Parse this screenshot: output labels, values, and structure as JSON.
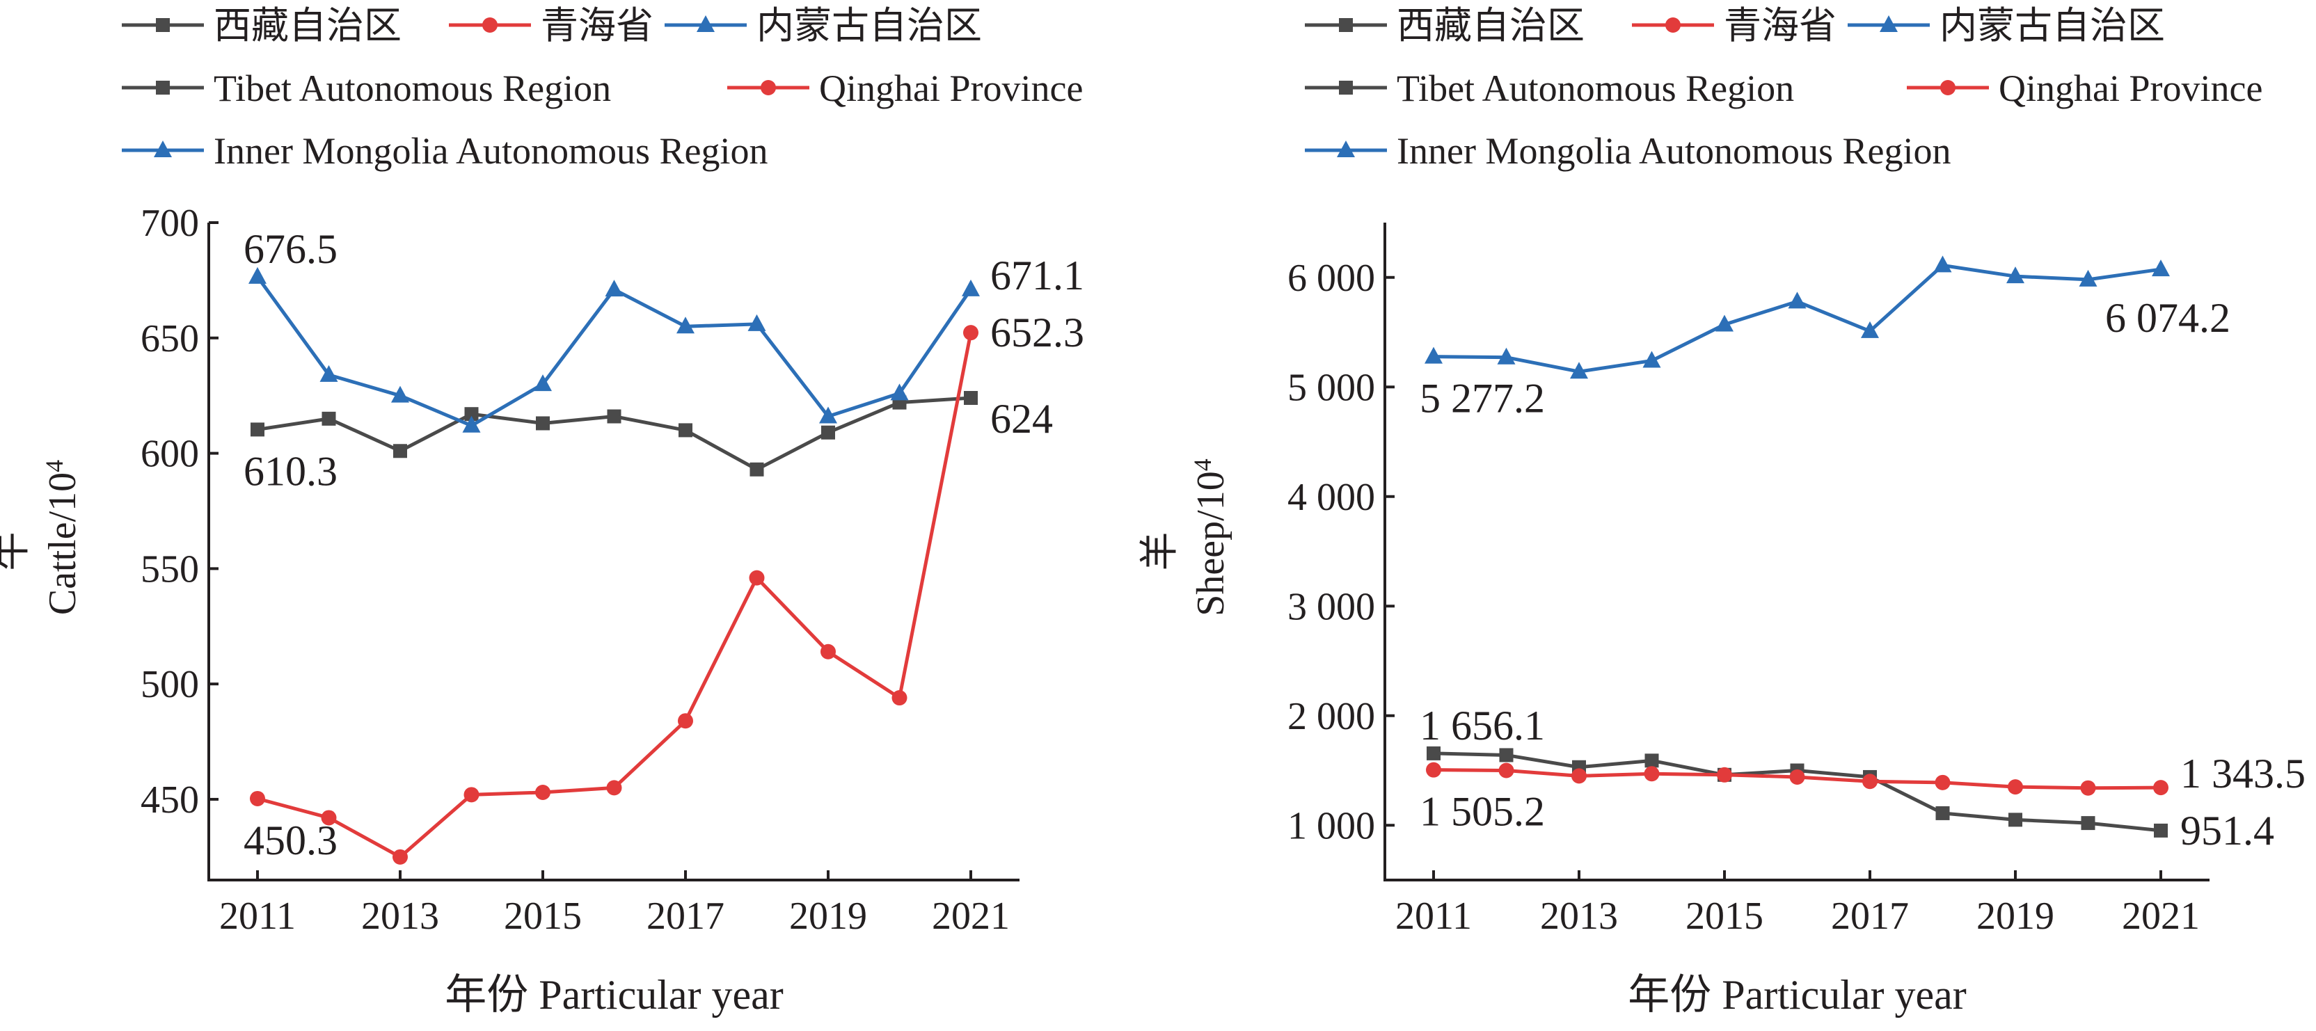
{
  "chart_data": [
    {
      "type": "line",
      "legend": [
        {
          "label": "西藏自治区",
          "color": "#4a4a4a",
          "marker": "square"
        },
        {
          "label": "青海省",
          "color": "#e23b3b",
          "marker": "circle"
        },
        {
          "label": "内蒙古自治区",
          "color": "#2c6fb7",
          "marker": "triangle"
        },
        {
          "label": "Tibet Autonomous Region",
          "color": "#4a4a4a",
          "marker": "square"
        },
        {
          "label": "Qinghai Province",
          "color": "#e23b3b",
          "marker": "circle"
        },
        {
          "label": "Inner Mongolia Autonomous Region",
          "color": "#2c6fb7",
          "marker": "triangle"
        }
      ],
      "x": [
        2011,
        2012,
        2013,
        2014,
        2015,
        2016,
        2017,
        2018,
        2019,
        2020,
        2021
      ],
      "x_ticks": [
        2011,
        2013,
        2015,
        2017,
        2019,
        2021
      ],
      "x_tick_labels": [
        "2011",
        "2013",
        "2015",
        "2017",
        "2019",
        "2021"
      ],
      "xlabel": "年份 Particular year",
      "ylabel_cn": "牛",
      "ylabel_en": "Cattle/10",
      "ylabel_sup": "4",
      "ylim": [
        415,
        700
      ],
      "y_ticks": [
        450,
        500,
        550,
        600,
        650,
        700
      ],
      "y_tick_labels": [
        "450",
        "500",
        "550",
        "600",
        "650",
        "700"
      ],
      "series": [
        {
          "name": "西藏自治区 / Tibet Autonomous Region",
          "color": "#4a4a4a",
          "marker": "square",
          "values": [
            610.3,
            615,
            601,
            617,
            613,
            616,
            610,
            593,
            609,
            622,
            624
          ]
        },
        {
          "name": "青海省 / Qinghai Province",
          "color": "#e23b3b",
          "marker": "circle",
          "values": [
            450.3,
            442,
            425,
            452,
            453,
            455,
            484,
            546,
            514,
            494,
            652.3
          ]
        },
        {
          "name": "内蒙古自治区 / Inner Mongolia Autonomous Region",
          "color": "#2c6fb7",
          "marker": "triangle",
          "values": [
            676.5,
            634,
            625,
            612,
            630,
            671,
            655,
            656,
            616,
            626,
            671.1
          ]
        }
      ],
      "data_labels": [
        {
          "text": "676.5",
          "x": 2011,
          "y": 676.5,
          "pos": "above"
        },
        {
          "text": "610.3",
          "x": 2011,
          "y": 610.3,
          "pos": "below"
        },
        {
          "text": "450.3",
          "x": 2011,
          "y": 450.3,
          "pos": "below"
        },
        {
          "text": "671.1",
          "x": 2021,
          "y": 671.1,
          "pos": "right-up"
        },
        {
          "text": "652.3",
          "x": 2021,
          "y": 652.3,
          "pos": "right"
        },
        {
          "text": "624",
          "x": 2021,
          "y": 624,
          "pos": "right-down"
        }
      ]
    },
    {
      "type": "line",
      "legend": [
        {
          "label": "西藏自治区",
          "color": "#4a4a4a",
          "marker": "square"
        },
        {
          "label": "青海省",
          "color": "#e23b3b",
          "marker": "circle"
        },
        {
          "label": "内蒙古自治区",
          "color": "#2c6fb7",
          "marker": "triangle"
        },
        {
          "label": "Tibet Autonomous Region",
          "color": "#4a4a4a",
          "marker": "square"
        },
        {
          "label": "Qinghai Province",
          "color": "#e23b3b",
          "marker": "circle"
        },
        {
          "label": "Inner Mongolia Autonomous Region",
          "color": "#2c6fb7",
          "marker": "triangle"
        }
      ],
      "x": [
        2011,
        2012,
        2013,
        2014,
        2015,
        2016,
        2017,
        2018,
        2019,
        2020,
        2021
      ],
      "x_ticks": [
        2011,
        2013,
        2015,
        2017,
        2019,
        2021
      ],
      "x_tick_labels": [
        "2011",
        "2013",
        "2015",
        "2017",
        "2019",
        "2021"
      ],
      "xlabel": "年份 Particular year",
      "ylabel_cn": "羊",
      "ylabel_en": "Sheep/10",
      "ylabel_sup": "4",
      "ylim": [
        500,
        6500
      ],
      "y_ticks": [
        1000,
        2000,
        3000,
        4000,
        5000,
        6000
      ],
      "y_tick_labels": [
        "1 000",
        "2 000",
        "3 000",
        "4 000",
        "5 000",
        "6 000"
      ],
      "series": [
        {
          "name": "西藏自治区 / Tibet Autonomous Region",
          "color": "#4a4a4a",
          "marker": "square",
          "values": [
            1656.1,
            1640,
            1530,
            1590,
            1460,
            1500,
            1440,
            1110,
            1050,
            1020,
            951.4
          ]
        },
        {
          "name": "青海省 / Qinghai Province",
          "color": "#e23b3b",
          "marker": "circle",
          "values": [
            1505.2,
            1500,
            1450,
            1470,
            1460,
            1440,
            1400,
            1390,
            1350,
            1340,
            1343.5
          ]
        },
        {
          "name": "内蒙古自治区 / Inner Mongolia Autonomous Region",
          "color": "#2c6fb7",
          "marker": "triangle",
          "values": [
            5277.2,
            5270,
            5140,
            5240,
            5570,
            5780,
            5510,
            6110,
            6010,
            5980,
            6074.2
          ]
        }
      ],
      "data_labels": [
        {
          "text": "5 277.2",
          "x": 2011,
          "y": 5277.2,
          "pos": "below"
        },
        {
          "text": "6 074.2",
          "x": 2021,
          "y": 6074.2,
          "pos": "below-left"
        },
        {
          "text": "1 656.1",
          "x": 2011,
          "y": 1656.1,
          "pos": "above"
        },
        {
          "text": "1 505.2",
          "x": 2011,
          "y": 1505.2,
          "pos": "below"
        },
        {
          "text": "1 343.5",
          "x": 2021,
          "y": 1343.5,
          "pos": "right-up"
        },
        {
          "text": "951.4",
          "x": 2021,
          "y": 951.4,
          "pos": "right"
        }
      ]
    }
  ]
}
